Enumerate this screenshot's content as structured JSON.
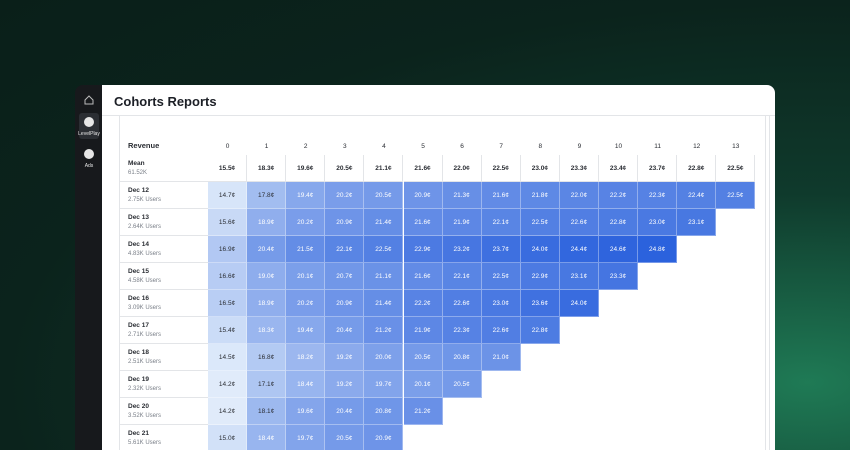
{
  "sidebar": {
    "items": [
      "LevelPlay",
      "Ads"
    ]
  },
  "header": {
    "title": "Cohorts Reports"
  },
  "table": {
    "corner": "Revenue",
    "columns": [
      "0",
      "1",
      "2",
      "3",
      "4",
      "5",
      "6",
      "7",
      "8",
      "9",
      "10",
      "11",
      "12",
      "13"
    ],
    "rows": [
      {
        "label": "Mean",
        "sub": "61.52K",
        "cells": [
          "15.5¢",
          "18.3¢",
          "19.6¢",
          "20.5¢",
          "21.1¢",
          "21.6¢",
          "22.0¢",
          "22.5¢",
          "23.0¢",
          "23.3¢",
          "23.4¢",
          "23.7¢",
          "22.8¢",
          "22.5¢"
        ]
      },
      {
        "label": "Dec 12",
        "sub": "2.75K Users",
        "cells": [
          "14.7¢",
          "17.8¢",
          "19.4¢",
          "20.2¢",
          "20.5¢",
          "20.9¢",
          "21.3¢",
          "21.6¢",
          "21.8¢",
          "22.0¢",
          "22.2¢",
          "22.3¢",
          "22.4¢",
          "22.5¢"
        ]
      },
      {
        "label": "Dec 13",
        "sub": "2.64K Users",
        "cells": [
          "15.6¢",
          "18.9¢",
          "20.2¢",
          "20.9¢",
          "21.4¢",
          "21.6¢",
          "21.9¢",
          "22.1¢",
          "22.5¢",
          "22.6¢",
          "22.8¢",
          "23.0¢",
          "23.1¢"
        ]
      },
      {
        "label": "Dec 14",
        "sub": "4.83K Users",
        "cells": [
          "16.9¢",
          "20.4¢",
          "21.5¢",
          "22.1¢",
          "22.5¢",
          "22.9¢",
          "23.2¢",
          "23.7¢",
          "24.0¢",
          "24.4¢",
          "24.6¢",
          "24.8¢"
        ]
      },
      {
        "label": "Dec 15",
        "sub": "4.58K Users",
        "cells": [
          "16.6¢",
          "19.0¢",
          "20.1¢",
          "20.7¢",
          "21.1¢",
          "21.6¢",
          "22.1¢",
          "22.5¢",
          "22.9¢",
          "23.1¢",
          "23.3¢"
        ]
      },
      {
        "label": "Dec 16",
        "sub": "3.09K Users",
        "cells": [
          "16.5¢",
          "18.9¢",
          "20.2¢",
          "20.9¢",
          "21.4¢",
          "22.2¢",
          "22.6¢",
          "23.0¢",
          "23.6¢",
          "24.0¢"
        ]
      },
      {
        "label": "Dec 17",
        "sub": "2.71K Users",
        "cells": [
          "15.4¢",
          "18.3¢",
          "19.4¢",
          "20.4¢",
          "21.2¢",
          "21.9¢",
          "22.3¢",
          "22.6¢",
          "22.8¢"
        ]
      },
      {
        "label": "Dec 18",
        "sub": "2.51K Users",
        "cells": [
          "14.5¢",
          "16.8¢",
          "18.2¢",
          "19.2¢",
          "20.0¢",
          "20.5¢",
          "20.8¢",
          "21.0¢"
        ]
      },
      {
        "label": "Dec 19",
        "sub": "2.32K Users",
        "cells": [
          "14.2¢",
          "17.1¢",
          "18.4¢",
          "19.2¢",
          "19.7¢",
          "20.1¢",
          "20.5¢"
        ]
      },
      {
        "label": "Dec 20",
        "sub": "3.52K Users",
        "cells": [
          "14.2¢",
          "18.1¢",
          "19.6¢",
          "20.4¢",
          "20.8¢",
          "21.2¢"
        ]
      },
      {
        "label": "Dec 21",
        "sub": "5.61K Users",
        "cells": [
          "15.0¢",
          "18.4¢",
          "19.7¢",
          "20.5¢",
          "20.9¢"
        ]
      }
    ]
  }
}
